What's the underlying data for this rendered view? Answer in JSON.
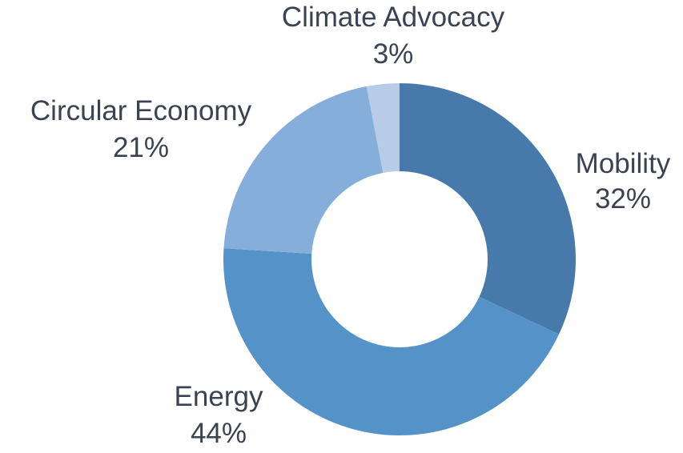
{
  "chart_data": {
    "type": "pie",
    "subtype": "donut",
    "slices": [
      {
        "label": "Mobility",
        "value": 32,
        "value_label": "32%",
        "color": "#4779aa"
      },
      {
        "label": "Energy",
        "value": 44,
        "value_label": "44%",
        "color": "#5592c8"
      },
      {
        "label": "Circular Economy",
        "value": 21,
        "value_label": "21%",
        "color": "#86aedb"
      },
      {
        "label": "Climate Advocacy",
        "value": 3,
        "value_label": "3%",
        "color": "#b8cce8"
      }
    ],
    "label_color": "#3b4252",
    "legend": "none"
  }
}
